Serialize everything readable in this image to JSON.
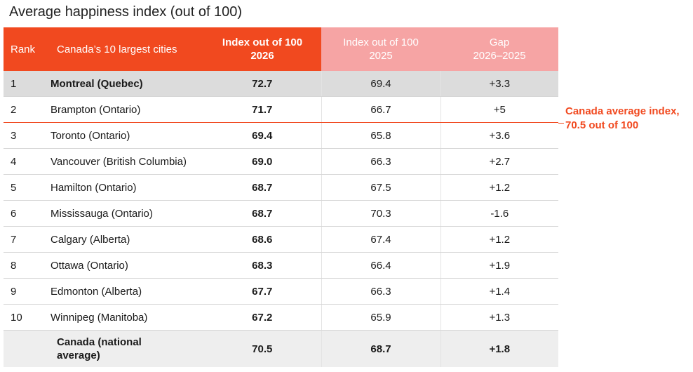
{
  "title": "Average happiness index (out of 100)",
  "chart_data": {
    "type": "table",
    "title": "Average happiness index (out of 100)",
    "headers": {
      "rank": "Rank",
      "city": "Canada’s 10 largest cities",
      "index_2026": [
        "Index out of 100",
        "2026"
      ],
      "index_2025": [
        "Index out of 100",
        "2025"
      ],
      "gap": [
        "Gap",
        "2026–2025"
      ]
    },
    "rows": [
      {
        "rank": "1",
        "city": "Montreal (Quebec)",
        "index_2026": "72.7",
        "index_2025": "69.4",
        "gap": "+3.3"
      },
      {
        "rank": "2",
        "city": "Brampton (Ontario)",
        "index_2026": "71.7",
        "index_2025": "66.7",
        "gap": "+5"
      },
      {
        "rank": "3",
        "city": "Toronto (Ontario)",
        "index_2026": "69.4",
        "index_2025": "65.8",
        "gap": "+3.6"
      },
      {
        "rank": "4",
        "city": "Vancouver (British Columbia)",
        "index_2026": "69.0",
        "index_2025": "66.3",
        "gap": "+2.7"
      },
      {
        "rank": "5",
        "city": "Hamilton (Ontario)",
        "index_2026": "68.7",
        "index_2025": "67.5",
        "gap": "+1.2"
      },
      {
        "rank": "6",
        "city": "Mississauga (Ontario)",
        "index_2026": "68.7",
        "index_2025": "70.3",
        "gap": "-1.6"
      },
      {
        "rank": "7",
        "city": "Calgary (Alberta)",
        "index_2026": "68.6",
        "index_2025": "67.4",
        "gap": "+1.2"
      },
      {
        "rank": "8",
        "city": "Ottawa (Ontario)",
        "index_2026": "68.3",
        "index_2025": "66.4",
        "gap": "+1.9"
      },
      {
        "rank": "9",
        "city": "Edmonton (Alberta)",
        "index_2026": "67.7",
        "index_2025": "66.3",
        "gap": "+1.4"
      },
      {
        "rank": "10",
        "city": "Winnipeg (Manitoba)",
        "index_2026": "67.2",
        "index_2025": "65.9",
        "gap": "+1.3"
      }
    ],
    "national": {
      "city": [
        "Canada (national",
        "average)"
      ],
      "index_2026": "70.5",
      "index_2025": "68.7",
      "gap": "+1.8"
    },
    "annotation": {
      "lines": [
        "Canada average index,",
        "70.5 out of 100"
      ],
      "value": 70.5
    },
    "colors": {
      "accent": "#f1491f",
      "accent_light": "#f6a4a4",
      "highlight_row": "#dcdcdc",
      "national_row": "#eeeeee"
    }
  }
}
